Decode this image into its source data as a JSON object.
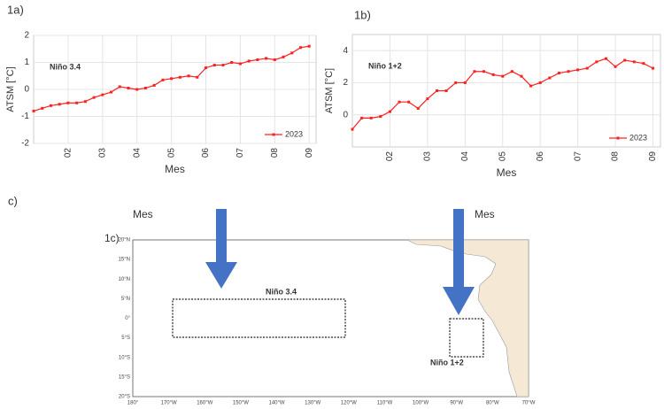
{
  "chart_data": [
    {
      "type": "line",
      "panel": "1a)",
      "annotation": "Niño 3.4",
      "ylabel": "ATSM [°C]",
      "xlabel": "Mes",
      "x": [
        1,
        1.25,
        1.5,
        1.75,
        2,
        2.25,
        2.5,
        2.75,
        3,
        3.25,
        3.5,
        3.75,
        4,
        4.25,
        4.5,
        4.75,
        5,
        5.25,
        5.5,
        5.75,
        6,
        6.25,
        6.5,
        6.75,
        7,
        7.25,
        7.5,
        7.75,
        8,
        8.25,
        8.5,
        8.75,
        9
      ],
      "series": [
        {
          "name": "2023",
          "color": "#ff2020",
          "values": [
            -0.8,
            -0.7,
            -0.6,
            -0.55,
            -0.5,
            -0.5,
            -0.45,
            -0.3,
            -0.2,
            -0.1,
            0.1,
            0.05,
            0.0,
            0.05,
            0.15,
            0.35,
            0.4,
            0.45,
            0.5,
            0.45,
            0.8,
            0.9,
            0.9,
            1.0,
            0.95,
            1.05,
            1.1,
            1.15,
            1.1,
            1.2,
            1.35,
            1.55,
            1.6
          ]
        }
      ],
      "xlim": [
        1,
        9.2
      ],
      "xticks": [
        {
          "value": 2,
          "label": "02"
        },
        {
          "value": 3,
          "label": "03"
        },
        {
          "value": 4,
          "label": "04"
        },
        {
          "value": 5,
          "label": "05"
        },
        {
          "value": 6,
          "label": "06"
        },
        {
          "value": 7,
          "label": "07"
        },
        {
          "value": 8,
          "label": "08"
        },
        {
          "value": 9,
          "label": "09"
        }
      ],
      "ylim": [
        -2,
        2
      ],
      "yticks": [
        -2,
        -1,
        0,
        1,
        2
      ],
      "grid": true,
      "legend": "lower right"
    },
    {
      "type": "line",
      "panel": "1b)",
      "annotation": "Niño 1+2",
      "ylabel": "ATSM [°C]",
      "xlabel": "Mes",
      "x": [
        1,
        1.25,
        1.5,
        1.75,
        2,
        2.25,
        2.5,
        2.75,
        3,
        3.25,
        3.5,
        3.75,
        4,
        4.25,
        4.5,
        4.75,
        5,
        5.25,
        5.5,
        5.75,
        6,
        6.25,
        6.5,
        6.75,
        7,
        7.25,
        7.5,
        7.75,
        8,
        8.25,
        8.5,
        8.75,
        9
      ],
      "series": [
        {
          "name": "2023",
          "color": "#ff2020",
          "values": [
            -0.9,
            -0.2,
            -0.2,
            -0.1,
            0.2,
            0.8,
            0.8,
            0.4,
            1.0,
            1.5,
            1.5,
            2.0,
            2.0,
            2.7,
            2.7,
            2.5,
            2.4,
            2.7,
            2.4,
            1.8,
            2.0,
            2.3,
            2.6,
            2.7,
            2.8,
            2.9,
            3.3,
            3.5,
            3.0,
            3.4,
            3.3,
            3.2,
            2.9
          ]
        }
      ],
      "xlim": [
        1,
        9.2
      ],
      "xticks": [
        {
          "value": 2,
          "label": "02"
        },
        {
          "value": 3,
          "label": "03"
        },
        {
          "value": 4,
          "label": "04"
        },
        {
          "value": 5,
          "label": "05"
        },
        {
          "value": 6,
          "label": "06"
        },
        {
          "value": 7,
          "label": "07"
        },
        {
          "value": 8,
          "label": "08"
        },
        {
          "value": 9,
          "label": "09"
        }
      ],
      "ylim": [
        -2,
        5
      ],
      "yticks": [
        0,
        2,
        4
      ],
      "grid": true,
      "legend": "lower right"
    }
  ],
  "panel_c": {
    "label": "c)",
    "map_label": "1c)",
    "stray_texts": [
      "Mes",
      "Mes"
    ],
    "lat_labels": [
      "20°N",
      "15°N",
      "10°N",
      "5°N",
      "0°",
      "5°S",
      "10°S",
      "15°S",
      "20°S"
    ],
    "lon_labels": [
      "180°",
      "170°W",
      "160°W",
      "150°W",
      "140°W",
      "130°W",
      "120°W",
      "110°W",
      "100°W",
      "90°W",
      "80°W",
      "70°W"
    ],
    "boxes": [
      "Niño 3.4",
      "Niño 1+2"
    ]
  }
}
